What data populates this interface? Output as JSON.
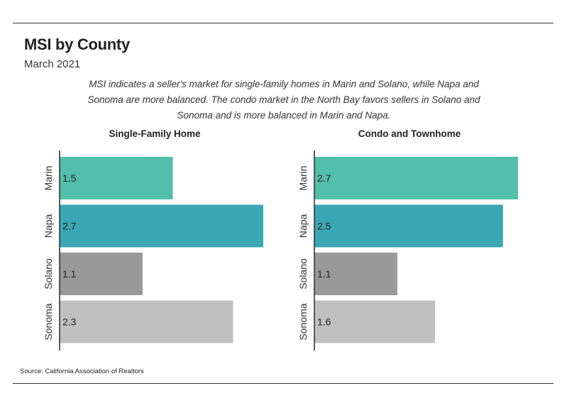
{
  "title": "MSI by County",
  "subtitle": "March 2021",
  "caption": "MSI indicates a seller's market for single-family homes in Marin and Solano, while Napa and Sonoma are more balanced. The condo market in the North Bay favors sellers in Solano and Sonoma and is more balanced in Marin and Napa.",
  "source": "Source:  California Association of Realtors",
  "colors": {
    "Marin": "#52bfaa",
    "Napa": "#3aa7b5",
    "Solano": "#999999",
    "Sonoma": "#c0c0c0"
  },
  "chart_data": [
    {
      "type": "bar",
      "orientation": "horizontal",
      "title": "Single-Family Home",
      "categories": [
        "Marin",
        "Napa",
        "Solano",
        "Sonoma"
      ],
      "values": [
        1.5,
        2.7,
        1.1,
        2.3
      ],
      "value_labels": [
        "1.5",
        "2.7",
        "1.1",
        "2.3"
      ],
      "xlim": [
        0,
        2.7
      ],
      "grid": false
    },
    {
      "type": "bar",
      "orientation": "horizontal",
      "title": "Condo and Townhome",
      "categories": [
        "Marin",
        "Napa",
        "Solano",
        "Sonoma"
      ],
      "values": [
        2.7,
        2.5,
        1.1,
        1.6
      ],
      "value_labels": [
        "2.7",
        "2.5",
        "1.1",
        "1.6"
      ],
      "xlim": [
        0,
        2.7
      ],
      "grid": false
    }
  ]
}
